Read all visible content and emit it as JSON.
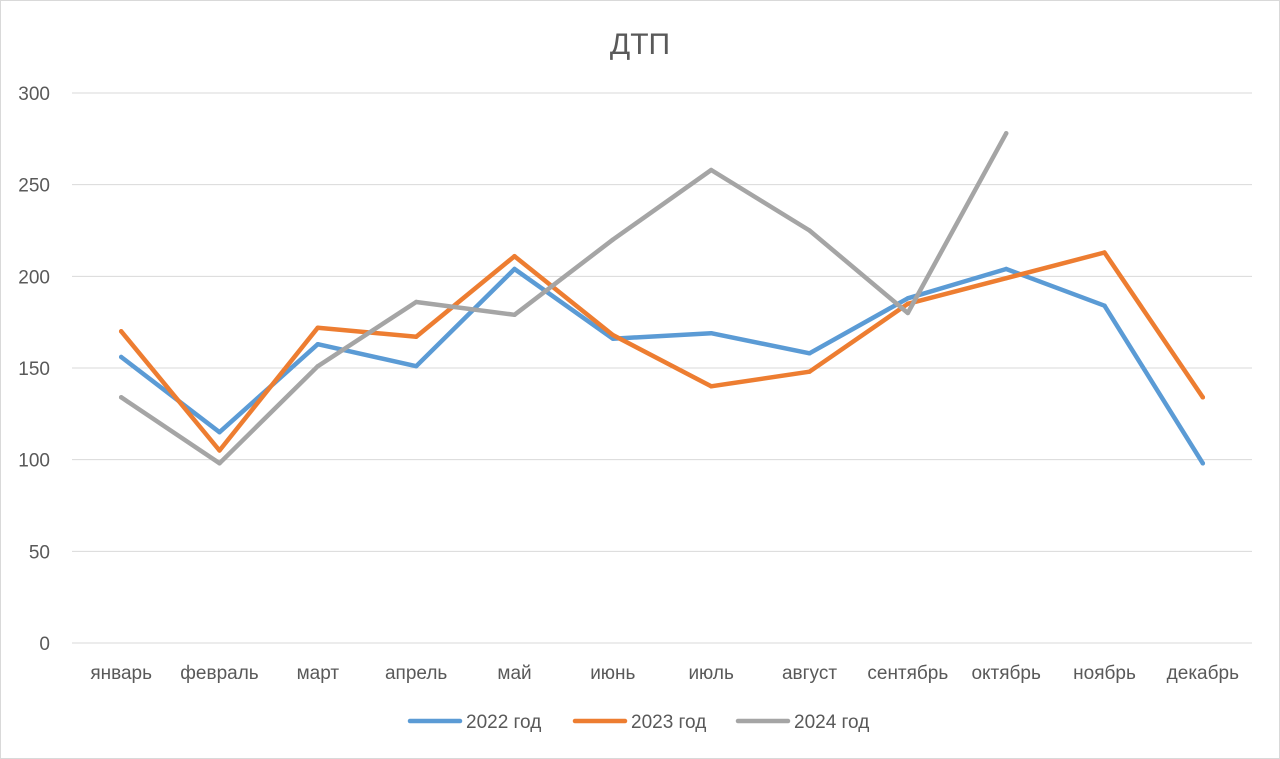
{
  "chart_data": {
    "type": "line",
    "title": "ДТП",
    "categories": [
      "январь",
      "февраль",
      "март",
      "апрель",
      "май",
      "июнь",
      "июль",
      "август",
      "сентябрь",
      "октябрь",
      "ноябрь",
      "декабрь"
    ],
    "ylim": [
      0,
      300
    ],
    "yticks": [
      0,
      50,
      100,
      150,
      200,
      250,
      300
    ],
    "grid": true,
    "legend": "bottom",
    "series": [
      {
        "name": "2022 год",
        "color": "#5b9bd5",
        "values": [
          156,
          115,
          163,
          151,
          204,
          166,
          169,
          158,
          188,
          204,
          184,
          98
        ]
      },
      {
        "name": "2023 год",
        "color": "#ed7d31",
        "values": [
          170,
          105,
          172,
          167,
          211,
          168,
          140,
          148,
          185,
          199,
          213,
          134
        ]
      },
      {
        "name": "2024 год",
        "color": "#a5a5a5",
        "values": [
          134,
          98,
          151,
          186,
          179,
          220,
          258,
          225,
          180,
          278,
          null,
          null
        ]
      }
    ]
  }
}
